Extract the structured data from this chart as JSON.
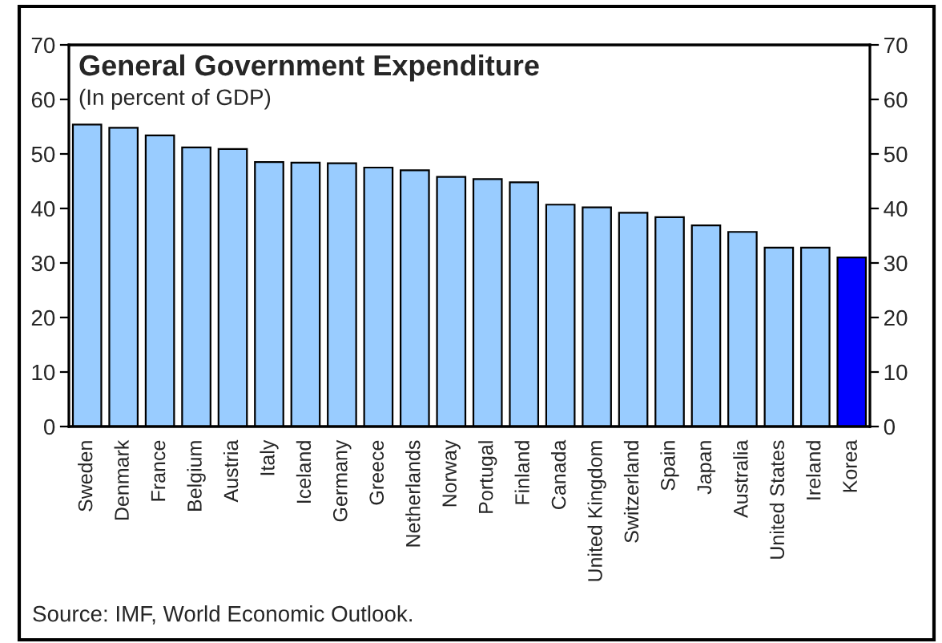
{
  "chart_data": {
    "type": "bar",
    "title": "General Government Expenditure",
    "subtitle": "(In percent of GDP)",
    "categories": [
      "Sweden",
      "Denmark",
      "France",
      "Belgium",
      "Austria",
      "Italy",
      "Iceland",
      "Germany",
      "Greece",
      "Netherlands",
      "Norway",
      "Portugal",
      "Finland",
      "Canada",
      "United Kingdom",
      "Switzerland",
      "Spain",
      "Japan",
      "Australia",
      "United States",
      "Ireland",
      "Korea"
    ],
    "values": [
      55.4,
      54.8,
      53.4,
      51.2,
      50.9,
      48.5,
      48.4,
      48.3,
      47.5,
      47.0,
      45.8,
      45.4,
      44.8,
      40.7,
      40.2,
      39.2,
      38.4,
      36.9,
      35.7,
      32.8,
      32.8,
      31.0
    ],
    "colors": [
      "#99ccff",
      "#99ccff",
      "#99ccff",
      "#99ccff",
      "#99ccff",
      "#99ccff",
      "#99ccff",
      "#99ccff",
      "#99ccff",
      "#99ccff",
      "#99ccff",
      "#99ccff",
      "#99ccff",
      "#99ccff",
      "#99ccff",
      "#99ccff",
      "#99ccff",
      "#99ccff",
      "#99ccff",
      "#99ccff",
      "#99ccff",
      "#0000ff"
    ],
    "ylim": [
      0,
      70
    ],
    "yticks": [
      0,
      10,
      20,
      30,
      40,
      50,
      60,
      70
    ],
    "y2lim": [
      0,
      70
    ],
    "y2ticks": [
      0,
      10,
      20,
      30,
      40,
      50,
      60,
      70
    ],
    "grid": false,
    "legend": false,
    "annotations": [
      "Source: IMF, World Economic Outlook."
    ]
  }
}
